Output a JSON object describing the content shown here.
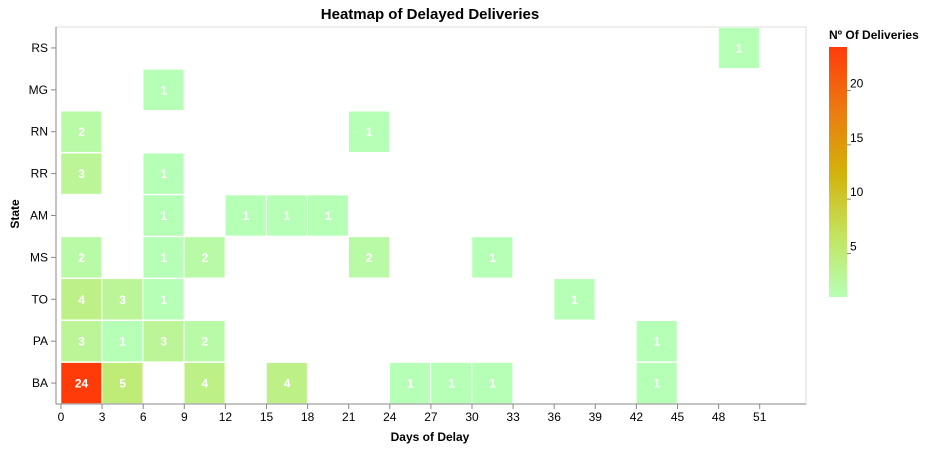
{
  "chart_data": {
    "type": "heatmap",
    "title": "Heatmap of Delayed Deliveries",
    "xlabel": "Days of Delay",
    "ylabel": "State",
    "x_bin_step": 3,
    "xlim": [
      0,
      54
    ],
    "x_ticks": [
      0,
      3,
      6,
      9,
      12,
      15,
      18,
      21,
      24,
      27,
      30,
      33,
      36,
      39,
      42,
      45,
      48,
      51
    ],
    "y_categories": [
      "RS",
      "MG",
      "RN",
      "RR",
      "AM",
      "MS",
      "TO",
      "PA",
      "BA"
    ],
    "cells": [
      {
        "x": 48,
        "y": "RS",
        "value": 1
      },
      {
        "x": 6,
        "y": "MG",
        "value": 1
      },
      {
        "x": 0,
        "y": "RN",
        "value": 2
      },
      {
        "x": 21,
        "y": "RN",
        "value": 1
      },
      {
        "x": 0,
        "y": "RR",
        "value": 3
      },
      {
        "x": 6,
        "y": "RR",
        "value": 1
      },
      {
        "x": 6,
        "y": "AM",
        "value": 1
      },
      {
        "x": 12,
        "y": "AM",
        "value": 1
      },
      {
        "x": 15,
        "y": "AM",
        "value": 1
      },
      {
        "x": 18,
        "y": "AM",
        "value": 1
      },
      {
        "x": 0,
        "y": "MS",
        "value": 2
      },
      {
        "x": 6,
        "y": "MS",
        "value": 1
      },
      {
        "x": 9,
        "y": "MS",
        "value": 2
      },
      {
        "x": 21,
        "y": "MS",
        "value": 2
      },
      {
        "x": 30,
        "y": "MS",
        "value": 1
      },
      {
        "x": 0,
        "y": "TO",
        "value": 4
      },
      {
        "x": 3,
        "y": "TO",
        "value": 3
      },
      {
        "x": 6,
        "y": "TO",
        "value": 1
      },
      {
        "x": 36,
        "y": "TO",
        "value": 1
      },
      {
        "x": 0,
        "y": "PA",
        "value": 3
      },
      {
        "x": 3,
        "y": "PA",
        "value": 1
      },
      {
        "x": 6,
        "y": "PA",
        "value": 3
      },
      {
        "x": 9,
        "y": "PA",
        "value": 2
      },
      {
        "x": 42,
        "y": "PA",
        "value": 1
      },
      {
        "x": 0,
        "y": "BA",
        "value": 24
      },
      {
        "x": 3,
        "y": "BA",
        "value": 5
      },
      {
        "x": 9,
        "y": "BA",
        "value": 4
      },
      {
        "x": 15,
        "y": "BA",
        "value": 4
      },
      {
        "x": 24,
        "y": "BA",
        "value": 1
      },
      {
        "x": 27,
        "y": "BA",
        "value": 1
      },
      {
        "x": 30,
        "y": "BA",
        "value": 1
      },
      {
        "x": 42,
        "y": "BA",
        "value": 1
      }
    ],
    "legend": {
      "title": "Nº Of Deliveries",
      "placement": "right",
      "ticks": [
        5,
        10,
        15,
        20
      ],
      "domain": [
        1,
        24
      ]
    },
    "color_scale": [
      "#b6ffb6",
      "#c3e35c",
      "#d4b10a",
      "#ec7a10",
      "#ff3b0a"
    ]
  }
}
